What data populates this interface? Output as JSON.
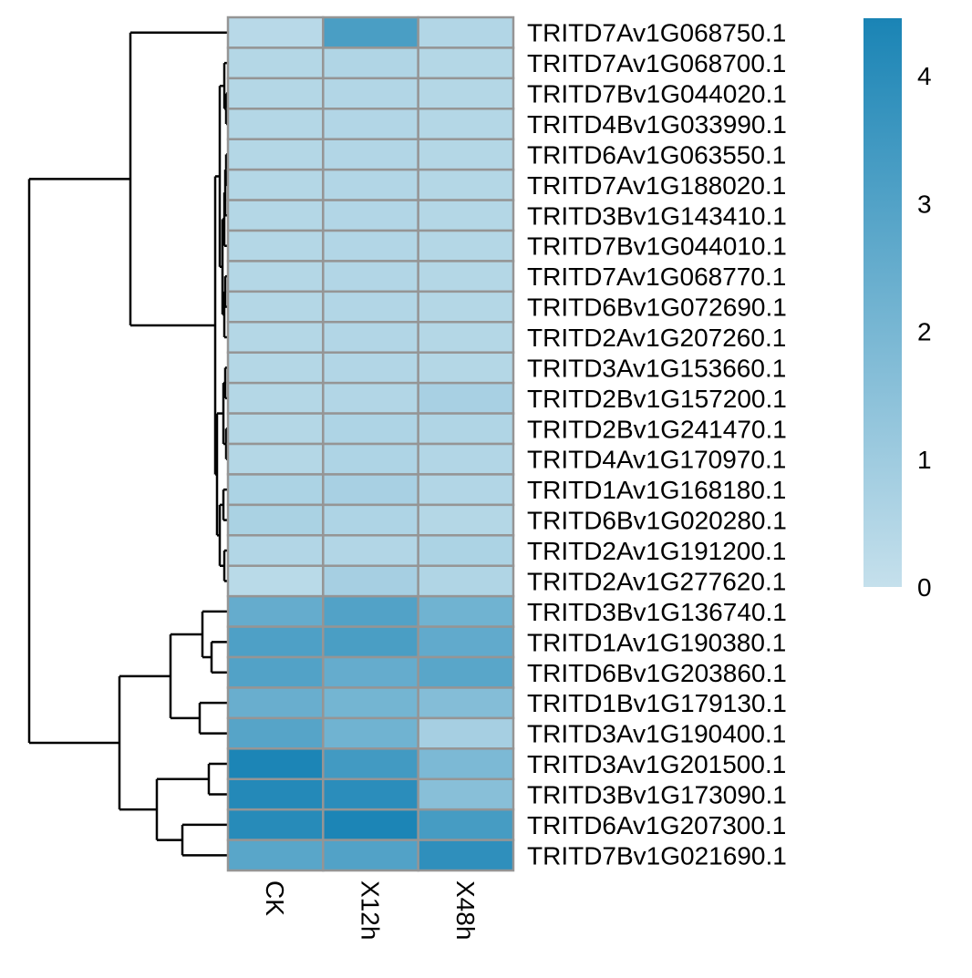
{
  "chart_data": {
    "type": "heatmap",
    "title": "",
    "xlabel": "",
    "ylabel": "",
    "columns": [
      "CK",
      "X12h",
      "X48h"
    ],
    "rows": [
      "TRITD7Av1G068750.1",
      "TRITD7Av1G068700.1",
      "TRITD7Bv1G044020.1",
      "TRITD4Bv1G033990.1",
      "TRITD6Av1G063550.1",
      "TRITD7Av1G188020.1",
      "TRITD3Bv1G143410.1",
      "TRITD7Bv1G044010.1",
      "TRITD7Av1G068770.1",
      "TRITD6Bv1G072690.1",
      "TRITD2Av1G207260.1",
      "TRITD3Av1G153660.1",
      "TRITD2Bv1G157200.1",
      "TRITD2Bv1G241470.1",
      "TRITD4Av1G170970.1",
      "TRITD1Av1G168180.1",
      "TRITD6Bv1G020280.1",
      "TRITD2Av1G191200.1",
      "TRITD2Av1G277620.1",
      "TRITD3Bv1G136740.1",
      "TRITD1Av1G190380.1",
      "TRITD6Bv1G203860.1",
      "TRITD1Bv1G179130.1",
      "TRITD3Av1G190400.1",
      "TRITD3Av1G201500.1",
      "TRITD3Bv1G173090.1",
      "TRITD6Av1G207300.1",
      "TRITD7Bv1G021690.1"
    ],
    "values": [
      [
        0.35,
        3.2,
        0.5
      ],
      [
        0.45,
        0.55,
        0.45
      ],
      [
        0.45,
        0.5,
        0.45
      ],
      [
        0.45,
        0.5,
        0.45
      ],
      [
        0.45,
        0.5,
        0.45
      ],
      [
        0.45,
        0.5,
        0.45
      ],
      [
        0.45,
        0.5,
        0.45
      ],
      [
        0.45,
        0.5,
        0.45
      ],
      [
        0.45,
        0.5,
        0.45
      ],
      [
        0.45,
        0.5,
        0.45
      ],
      [
        0.45,
        0.5,
        0.45
      ],
      [
        0.45,
        0.5,
        0.45
      ],
      [
        0.45,
        0.5,
        0.75
      ],
      [
        0.45,
        0.6,
        0.55
      ],
      [
        0.45,
        0.6,
        0.5
      ],
      [
        0.65,
        0.75,
        0.5
      ],
      [
        0.7,
        0.6,
        0.45
      ],
      [
        0.5,
        0.5,
        0.65
      ],
      [
        0.3,
        0.8,
        0.55
      ],
      [
        2.5,
        3.0,
        2.2
      ],
      [
        3.1,
        3.2,
        2.6
      ],
      [
        3.0,
        2.5,
        2.8
      ],
      [
        2.4,
        2.1,
        1.7
      ],
      [
        2.9,
        2.2,
        0.8
      ],
      [
        4.4,
        3.4,
        1.9
      ],
      [
        4.2,
        4.0,
        1.6
      ],
      [
        4.1,
        4.4,
        3.3
      ],
      [
        2.8,
        3.0,
        3.9
      ]
    ],
    "color_scale": {
      "min": 0,
      "max": 4.45,
      "low_color": "#c5e0ec",
      "high_color": "#1a84b5",
      "ticks": [
        0,
        1,
        2,
        3,
        4
      ]
    },
    "cell_border_color": "#959595",
    "row_dendrogram": true,
    "legend_position": "right"
  }
}
